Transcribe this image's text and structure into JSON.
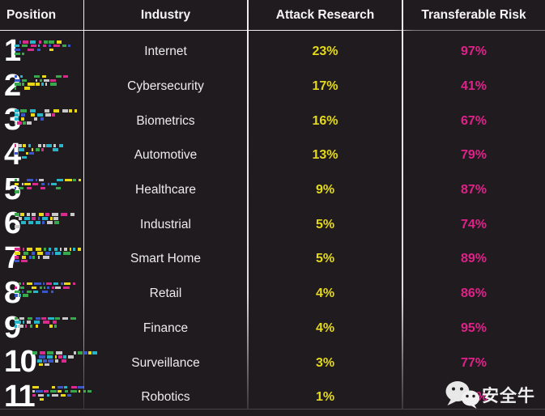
{
  "table": {
    "headers": [
      {
        "label": "Position"
      },
      {
        "label": "Industry"
      },
      {
        "label": "Attack Research"
      },
      {
        "label": "Transferable Risk"
      }
    ],
    "rows": [
      {
        "position": "1",
        "industry": "Internet",
        "attack": "23%",
        "risk": "97%"
      },
      {
        "position": "2",
        "industry": "Cybersecurity",
        "attack": "17%",
        "risk": "41%"
      },
      {
        "position": "3",
        "industry": "Biometrics",
        "attack": "16%",
        "risk": "67%"
      },
      {
        "position": "4",
        "industry": "Automotive",
        "attack": "13%",
        "risk": "79%"
      },
      {
        "position": "5",
        "industry": "Healthcare",
        "attack": "9%",
        "risk": "87%"
      },
      {
        "position": "6",
        "industry": "Industrial",
        "attack": "5%",
        "risk": "74%"
      },
      {
        "position": "7",
        "industry": "Smart Home",
        "attack": "5%",
        "risk": "89%"
      },
      {
        "position": "8",
        "industry": "Retail",
        "attack": "4%",
        "risk": "86%"
      },
      {
        "position": "9",
        "industry": "Finance",
        "attack": "4%",
        "risk": "95%"
      },
      {
        "position": "10",
        "industry": "Surveillance",
        "attack": "3%",
        "risk": "77%"
      },
      {
        "position": "11",
        "industry": "Robotics",
        "attack": "1%",
        "risk": "%",
        "risk_obscured": true
      }
    ]
  },
  "watermark": {
    "label": "安全牛",
    "icon": "wechat-icon"
  },
  "colors": {
    "background": "#201b1e",
    "header_text": "#f5f5f5",
    "body_text": "#ececec",
    "attack_value": "#e4da1a",
    "risk_value": "#e0218a",
    "grid_line": "#ffffff",
    "glitch_palette": [
      "#e8d818",
      "#d92a8e",
      "#27b6c9",
      "#37a94c",
      "#3a57c9",
      "#c9c9c9"
    ]
  },
  "chart_data": {
    "type": "table",
    "columns": [
      "Position",
      "Industry",
      "Attack Research",
      "Transferable Risk"
    ],
    "categories": [
      "Internet",
      "Cybersecurity",
      "Biometrics",
      "Automotive",
      "Healthcare",
      "Industrial",
      "Smart Home",
      "Retail",
      "Finance",
      "Surveillance",
      "Robotics"
    ],
    "series": [
      {
        "name": "Attack Research",
        "unit": "%",
        "values": [
          23,
          17,
          16,
          13,
          9,
          5,
          5,
          4,
          4,
          3,
          1
        ]
      },
      {
        "name": "Transferable Risk",
        "unit": "%",
        "values": [
          97,
          41,
          67,
          79,
          87,
          74,
          89,
          86,
          95,
          77,
          null
        ]
      }
    ],
    "note": "Transferable Risk value for Robotics is obscured by the watermark; only the % sign is visible."
  }
}
